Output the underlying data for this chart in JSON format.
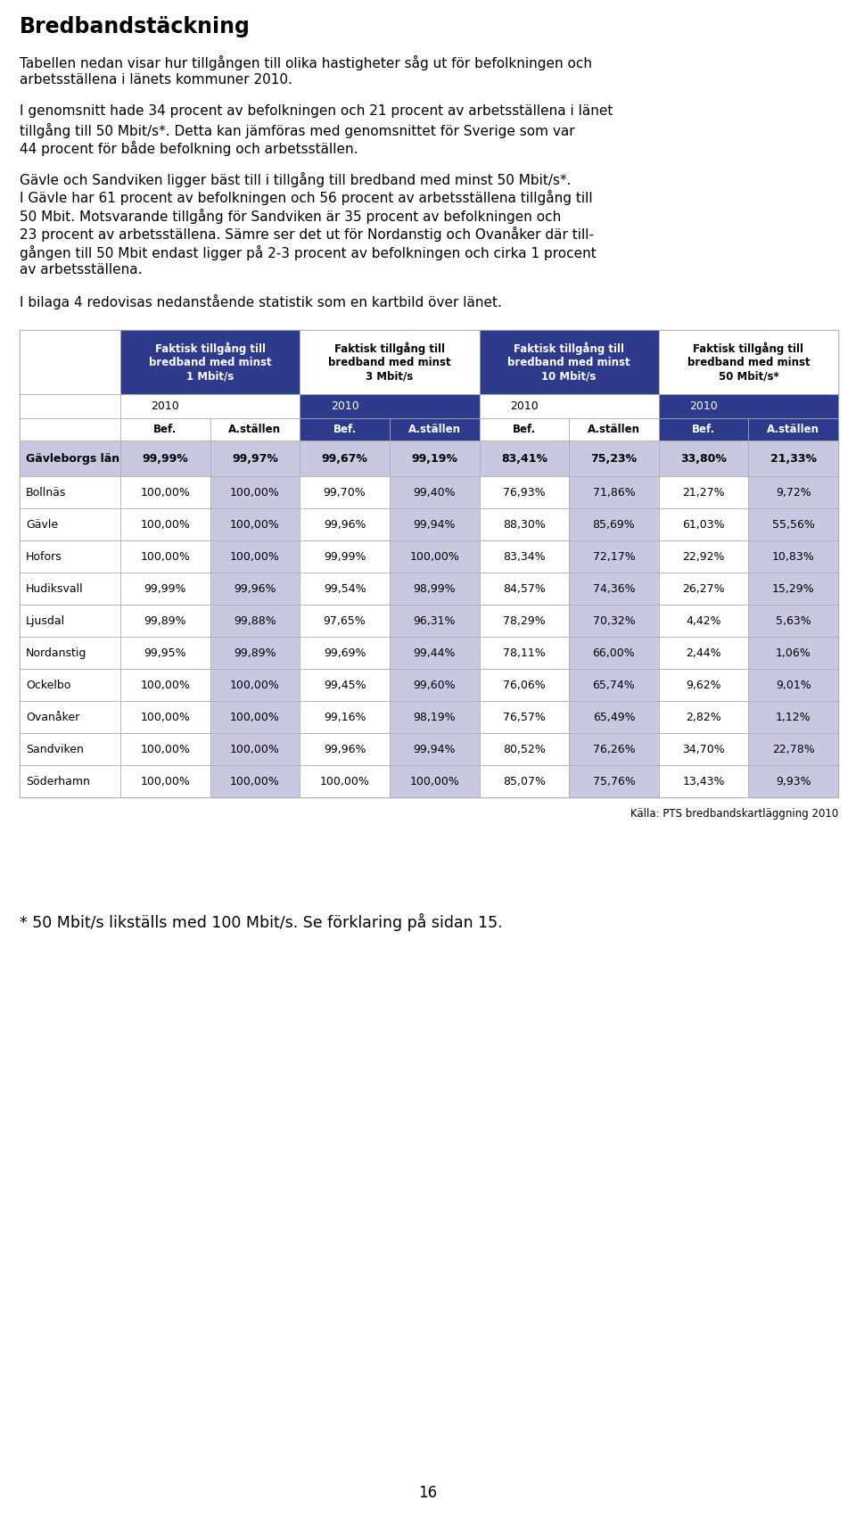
{
  "title": "Bredbandstäckning",
  "paragraphs": [
    "Tabellen nedan visar hur tillgången till olika hastigheter såg ut för befolkningen och\narbetsställena i länets kommuner 2010.",
    "I genomsnitt hade 34 procent av befolkningen och 21 procent av arbetsställena i länet\ntillgång till 50 Mbit/s*. Detta kan jämföras med genomsnittet för Sverige som var\n44 procent för både befolkning och arbetsställen.",
    "Gävle och Sandviken ligger bäst till i tillgång till bredband med minst 50 Mbit/s*.\nI Gävle har 61 procent av befolkningen och 56 procent av arbetsställena tillgång till\n50 Mbit. Motsvarande tillgång för Sandviken är 35 procent av befolkningen och\n23 procent av arbetsställena. Sämre ser det ut för Nordanstig och Ovanåker där till-\ngången till 50 Mbit endast ligger på 2-3 procent av befolkningen och cirka 1 procent\nav arbetsställena.",
    "I bilaga 4 redovisas nedanstående statistik som en kartbild över länet."
  ],
  "col_headers": [
    "Faktisk tillgång till\nbredband med minst\n1 Mbit/s",
    "Faktisk tillgång till\nbredband med minst\n3 Mbit/s",
    "Faktisk tillgång till\nbredband med minst\n10 Mbit/s",
    "Faktisk tillgång till\nbredband med minst\n50 Mbit/s*"
  ],
  "col_sub": [
    "Bef.",
    "A.ställen",
    "Bef.",
    "A.ställen",
    "Bef.",
    "A.ställen",
    "Bef.",
    "A.ställen"
  ],
  "rows": [
    {
      "name": "Gävleborgs län",
      "bold": true,
      "values": [
        "99,99%",
        "99,97%",
        "99,67%",
        "99,19%",
        "83,41%",
        "75,23%",
        "33,80%",
        "21,33%"
      ]
    },
    {
      "name": "Bollnäs",
      "bold": false,
      "values": [
        "100,00%",
        "100,00%",
        "99,70%",
        "99,40%",
        "76,93%",
        "71,86%",
        "21,27%",
        "9,72%"
      ]
    },
    {
      "name": "Gävle",
      "bold": false,
      "values": [
        "100,00%",
        "100,00%",
        "99,96%",
        "99,94%",
        "88,30%",
        "85,69%",
        "61,03%",
        "55,56%"
      ]
    },
    {
      "name": "Hofors",
      "bold": false,
      "values": [
        "100,00%",
        "100,00%",
        "99,99%",
        "100,00%",
        "83,34%",
        "72,17%",
        "22,92%",
        "10,83%"
      ]
    },
    {
      "name": "Hudiksvall",
      "bold": false,
      "values": [
        "99,99%",
        "99,96%",
        "99,54%",
        "98,99%",
        "84,57%",
        "74,36%",
        "26,27%",
        "15,29%"
      ]
    },
    {
      "name": "Ljusdal",
      "bold": false,
      "values": [
        "99,89%",
        "99,88%",
        "97,65%",
        "96,31%",
        "78,29%",
        "70,32%",
        "4,42%",
        "5,63%"
      ]
    },
    {
      "name": "Nordanstig",
      "bold": false,
      "values": [
        "99,95%",
        "99,89%",
        "99,69%",
        "99,44%",
        "78,11%",
        "66,00%",
        "2,44%",
        "1,06%"
      ]
    },
    {
      "name": "Ockelbo",
      "bold": false,
      "values": [
        "100,00%",
        "100,00%",
        "99,45%",
        "99,60%",
        "76,06%",
        "65,74%",
        "9,62%",
        "9,01%"
      ]
    },
    {
      "name": "Ovanåker",
      "bold": false,
      "values": [
        "100,00%",
        "100,00%",
        "99,16%",
        "98,19%",
        "76,57%",
        "65,49%",
        "2,82%",
        "1,12%"
      ]
    },
    {
      "name": "Sandviken",
      "bold": false,
      "values": [
        "100,00%",
        "100,00%",
        "99,96%",
        "99,94%",
        "80,52%",
        "76,26%",
        "34,70%",
        "22,78%"
      ]
    },
    {
      "name": "Söderhamn",
      "bold": false,
      "values": [
        "100,00%",
        "100,00%",
        "100,00%",
        "100,00%",
        "85,07%",
        "75,76%",
        "13,43%",
        "9,93%"
      ]
    }
  ],
  "caption": "Källa: PTS bredbandskartläggning 2010",
  "footnote": "* 50 Mbit/s likställs med 100 Mbit/s. Se förklaring på sidan 15.",
  "page_number": "16",
  "dark_blue": "#2E3B8C",
  "light_purple": "#C8C8E0",
  "white": "#FFFFFF",
  "border_color": "#AAAAAA"
}
